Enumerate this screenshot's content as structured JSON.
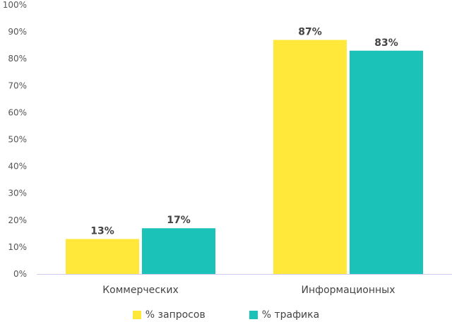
{
  "chart_data": {
    "type": "bar",
    "categories": [
      "Коммерческих",
      "Информационных"
    ],
    "series": [
      {
        "name": "% запросов",
        "values": [
          13,
          87
        ],
        "color": "#FFE839"
      },
      {
        "name": "% трафика",
        "values": [
          17,
          83
        ],
        "color": "#1BC2B8"
      }
    ],
    "data_labels": [
      [
        "13%",
        "87%"
      ],
      [
        "17%",
        "83%"
      ]
    ],
    "yticks": [
      "0%",
      "10%",
      "20%",
      "30%",
      "40%",
      "50%",
      "60%",
      "70%",
      "80%",
      "90%",
      "100%"
    ],
    "ylim": [
      0,
      100
    ],
    "grid": false,
    "legend_position": "bottom-center",
    "axis_color": "#CFC8F0"
  }
}
